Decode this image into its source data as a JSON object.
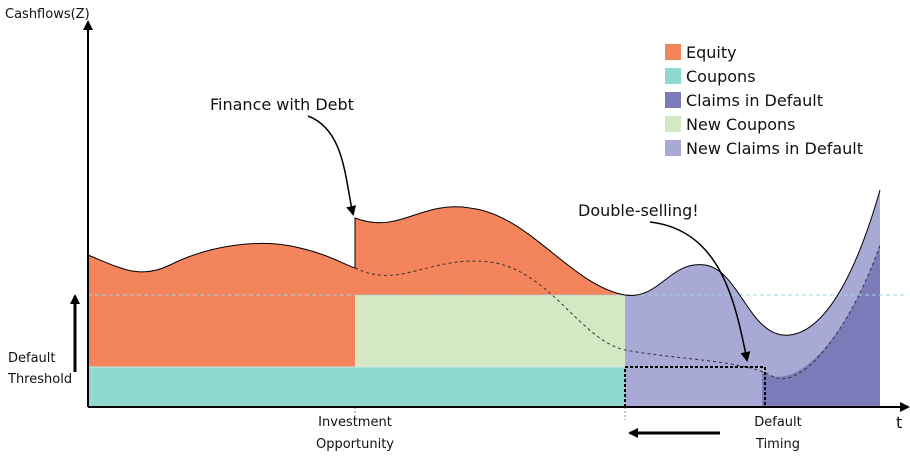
{
  "axes": {
    "y_label": "Cashflows(Z)",
    "x_label": "t"
  },
  "legend": [
    "Equity",
    "Coupons",
    "Claims in Default",
    "New Coupons",
    "New Claims in Default"
  ],
  "annotations": {
    "finance": "Finance with Debt",
    "double": "Double-selling!",
    "threshold": [
      "Default",
      "Threshold"
    ],
    "investment": [
      "Investment",
      "Opportunity"
    ],
    "timing": [
      "Default",
      "Timing"
    ]
  }
}
